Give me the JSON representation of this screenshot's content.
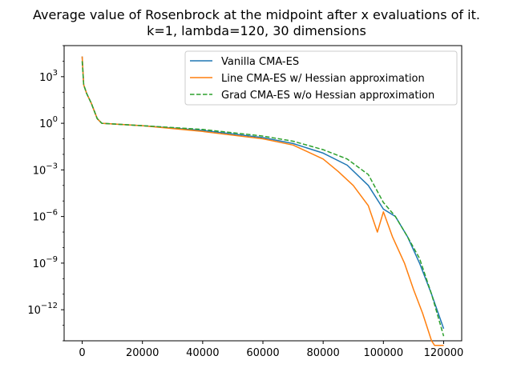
{
  "chart_data": {
    "type": "line",
    "title": "Average value of Rosenbrock at the midpoint after x evaluations of it.",
    "subtitle": "k=1, lambda=120, 30 dimensions",
    "xlabel": "",
    "ylabel": "",
    "xlim": [
      -6000,
      126000
    ],
    "ylim": [
      1e-14,
      100000.0
    ],
    "yscale": "log",
    "xticks": [
      0,
      20000,
      40000,
      60000,
      80000,
      100000,
      120000
    ],
    "xtick_labels": [
      "0",
      "20000",
      "40000",
      "60000",
      "80000",
      "100000",
      "120000"
    ],
    "yticks": [
      1e-12,
      1e-09,
      1e-06,
      0.001,
      1,
      1000.0
    ],
    "ytick_labels": [
      {
        "base": "10",
        "exp": "−12"
      },
      {
        "base": "10",
        "exp": "−9"
      },
      {
        "base": "10",
        "exp": "−6"
      },
      {
        "base": "10",
        "exp": "−3"
      },
      {
        "base": "10",
        "exp": "0"
      },
      {
        "base": "10",
        "exp": "3"
      }
    ],
    "grid": false,
    "legend_position": "top-right",
    "series": [
      {
        "name": "Vanilla CMA-ES",
        "color": "#1f77b4",
        "style": "solid",
        "x": [
          0,
          500,
          1500,
          3000,
          5000,
          6500,
          20000,
          40000,
          60000,
          70000,
          80000,
          88000,
          95000,
          100000,
          104000,
          108000,
          112000,
          116000,
          120000
        ],
        "y": [
          20000,
          300,
          80,
          20,
          2,
          1.0,
          0.7,
          0.35,
          0.12,
          0.05,
          0.012,
          0.002,
          0.0001,
          3e-06,
          1e-06,
          5e-08,
          1e-09,
          1e-11,
          6e-14
        ]
      },
      {
        "name": "Line CMA-ES w/ Hessian approximation",
        "color": "#ff7f0e",
        "style": "solid",
        "x": [
          0,
          500,
          1500,
          3000,
          5000,
          6500,
          20000,
          40000,
          60000,
          70000,
          80000,
          85000,
          90000,
          95000,
          98000,
          100000,
          103000,
          107000,
          110000,
          113000,
          116000,
          117000,
          120000
        ],
        "y": [
          20000,
          300,
          80,
          20,
          2,
          1.0,
          0.7,
          0.3,
          0.1,
          0.04,
          0.005,
          0.0008,
          0.0001,
          5e-06,
          1e-07,
          2e-06,
          5e-08,
          1e-09,
          2e-11,
          6e-13,
          1e-14,
          5e-15,
          5e-15
        ]
      },
      {
        "name": "Grad CMA-ES w/o Hessian approximation",
        "color": "#2ca02c",
        "style": "dashed",
        "x": [
          0,
          500,
          1500,
          3000,
          5000,
          6500,
          20000,
          40000,
          60000,
          70000,
          80000,
          88000,
          95000,
          100000,
          104000,
          108000,
          112000,
          116000,
          120000
        ],
        "y": [
          10000,
          300,
          80,
          20,
          2,
          1.0,
          0.7,
          0.4,
          0.15,
          0.07,
          0.02,
          0.005,
          0.0005,
          8e-06,
          1e-06,
          5e-08,
          2e-09,
          1e-11,
          2e-14
        ]
      }
    ]
  }
}
